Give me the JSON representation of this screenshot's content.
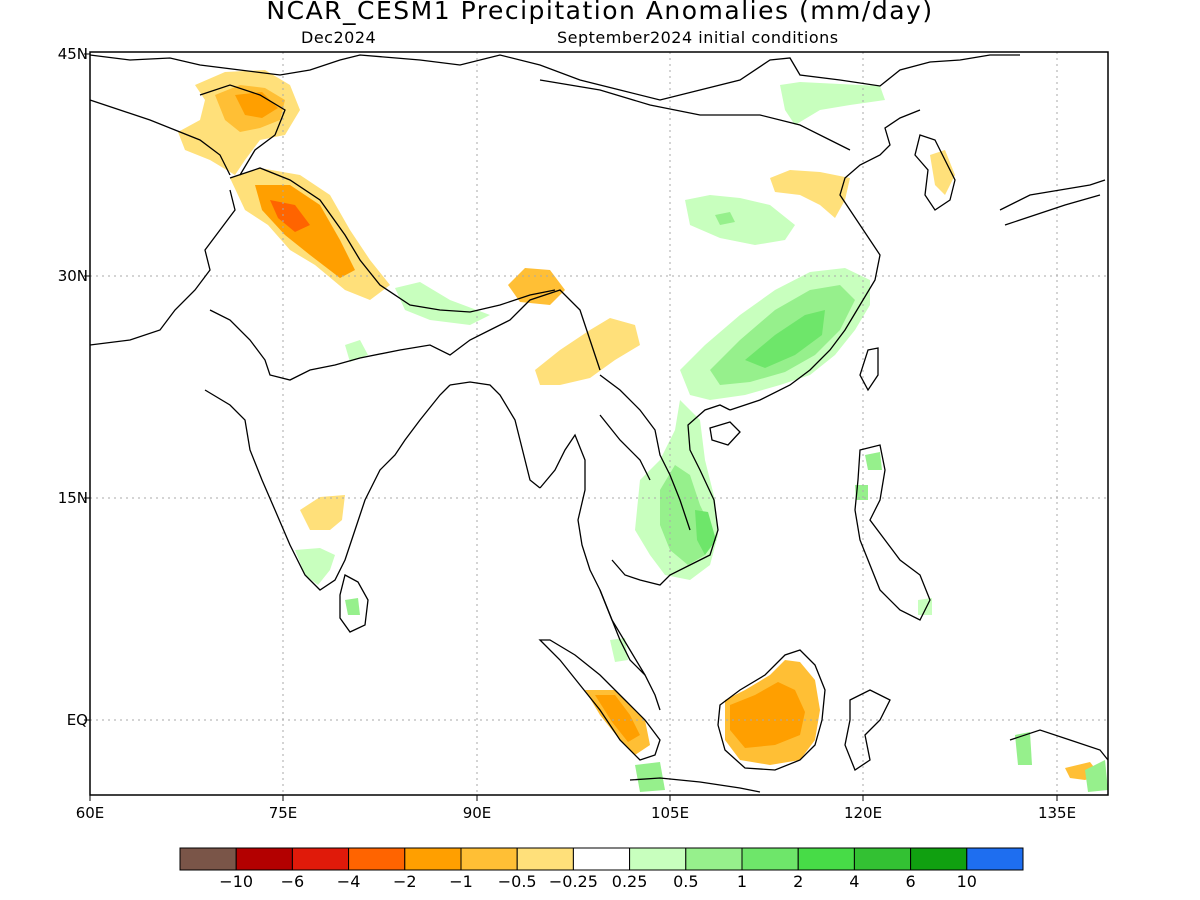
{
  "title": "NCAR_CESM1 Precipitation Anomalies (mm/day)",
  "valid_date": "Dec2024",
  "initial_conditions": "September2024 initial conditions",
  "lat_labels": [
    "45N",
    "30N",
    "15N",
    "EQ"
  ],
  "lon_labels": [
    "60E",
    "75E",
    "90E",
    "105E",
    "120E",
    "135E"
  ],
  "colorbar": {
    "labels": [
      "−10",
      "−6",
      "−4",
      "−2",
      "−1",
      "−0.5",
      "−0.25",
      "0.25",
      "0.5",
      "1",
      "2",
      "4",
      "6",
      "10"
    ],
    "colors": [
      "#7a5548",
      "#b30000",
      "#e01a0a",
      "#ff6400",
      "#ff9f00",
      "#ffbf35",
      "#ffe07a",
      "#ffffff",
      "#c8ffbe",
      "#96f08c",
      "#6ee66a",
      "#47dc47",
      "#33c133",
      "#10a010",
      "#1e6ef0"
    ]
  },
  "map_extent": {
    "lon_min": 60,
    "lon_max": 140,
    "lat_min": -6,
    "lat_max": 45
  }
}
